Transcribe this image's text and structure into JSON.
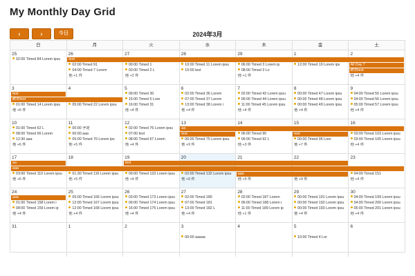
{
  "page_title": "My Monthly Day Grid",
  "toolbar": {
    "prev_label": "‹",
    "next_label": "›",
    "today_label": "今日"
  },
  "month_label": "2024年3月",
  "weekdays": [
    "日",
    "月",
    "火",
    "水",
    "木",
    "金",
    "土"
  ],
  "weeks": [
    {
      "days": [
        "25",
        "26",
        "27",
        "28",
        "29",
        "1",
        "2"
      ],
      "today_col": -1,
      "bars": [
        {
          "label": "test",
          "start": 1,
          "end": 6,
          "lane": 0
        },
        {
          "label": "All Day 7",
          "start": 6,
          "end": 6,
          "lane": 1
        },
        {
          "label": "終日test",
          "start": 6,
          "end": 6,
          "lane": 2
        }
      ],
      "events": [
        {
          "col": 0,
          "lane": 0,
          "text": "02:00 Timed 84 Lorem ipsu"
        },
        {
          "col": 1,
          "lane": 1,
          "text": "02:00 Timed 91"
        },
        {
          "col": 1,
          "lane": 2,
          "text": "04:00 Timed 7 Lorem"
        },
        {
          "col": 2,
          "lane": 1,
          "text": "00:00 Timed 1"
        },
        {
          "col": 2,
          "lane": 2,
          "text": "03:00 Timed 2 L"
        },
        {
          "col": 3,
          "lane": 1,
          "text": "10:00 Timed 11 Lorem ipsu"
        },
        {
          "col": 3,
          "lane": 2,
          "text": "15:00 test"
        },
        {
          "col": 4,
          "lane": 1,
          "text": "06:00 Timed 3 Lorem ip"
        },
        {
          "col": 4,
          "lane": 2,
          "text": "08:00 Timed 3 Lo"
        },
        {
          "col": 5,
          "lane": 1,
          "text": "12:00 Timed 10 Lorem ips"
        }
      ],
      "more": [
        {
          "col": 1,
          "lane": 3,
          "text": "他 +1 件"
        },
        {
          "col": 2,
          "lane": 3,
          "text": "他 +2 件"
        },
        {
          "col": 4,
          "lane": 3,
          "text": "他 +1 件"
        },
        {
          "col": 6,
          "lane": 3,
          "text": "他 +4 件"
        }
      ]
    },
    {
      "days": [
        "3",
        "4",
        "5",
        "6",
        "7",
        "8",
        "9"
      ],
      "today_col": -1,
      "bars": [
        {
          "label": "test",
          "start": 0,
          "end": 0,
          "lane": 0
        },
        {
          "label": "終日test",
          "start": 0,
          "end": 1,
          "lane": 1
        }
      ],
      "events": [
        {
          "col": 0,
          "lane": 2,
          "text": "01:00 Timed 14 Lorem ipsu"
        },
        {
          "col": 1,
          "lane": 2,
          "text": "05:00 Timed 22 Lorem ipsu"
        },
        {
          "col": 2,
          "lane": 0,
          "text": "09:00 Timed 30"
        },
        {
          "col": 2,
          "lane": 1,
          "text": "15:00 Timed 5 Lore"
        },
        {
          "col": 2,
          "lane": 2,
          "text": "16:00 Timed 31"
        },
        {
          "col": 3,
          "lane": 0,
          "text": "02:00 Timed 36 Lorem"
        },
        {
          "col": 3,
          "lane": 1,
          "text": "07:00 Timed 37 Lorem"
        },
        {
          "col": 3,
          "lane": 2,
          "text": "13:00 Timed 38 Lorem i"
        },
        {
          "col": 4,
          "lane": 0,
          "text": "02:00 Timed 43 Lorem ipsu"
        },
        {
          "col": 4,
          "lane": 1,
          "text": "06:00 Timed 44 Lorem ipsu"
        },
        {
          "col": 4,
          "lane": 2,
          "text": "11:00 Timed 45 Lorem ipsu"
        },
        {
          "col": 5,
          "lane": 0,
          "text": "00:00 Timed 47 Lorem ipsu"
        },
        {
          "col": 5,
          "lane": 1,
          "text": "00:00 Timed 48 Lorem ipsu"
        },
        {
          "col": 5,
          "lane": 2,
          "text": "00:00 Timed 49 Lorem ipsu"
        },
        {
          "col": 6,
          "lane": 0,
          "text": "04:00 Timed 55 Lorem ipsu"
        },
        {
          "col": 6,
          "lane": 1,
          "text": "04:00 Timed 56 Lorem ipsu"
        },
        {
          "col": 6,
          "lane": 2,
          "text": "05:00 Timed 57 Lorem ipsu"
        }
      ],
      "more": [
        {
          "col": 0,
          "lane": 3,
          "text": "他 +6 件"
        },
        {
          "col": 2,
          "lane": 3,
          "text": "他 +4 件"
        },
        {
          "col": 3,
          "lane": 3,
          "text": "他 +4 件"
        },
        {
          "col": 4,
          "lane": 3,
          "text": "他 +4 件"
        },
        {
          "col": 5,
          "lane": 3,
          "text": "他 +4 件"
        },
        {
          "col": 6,
          "lane": 3,
          "text": "他 +4 件"
        }
      ]
    },
    {
      "days": [
        "10",
        "11",
        "12",
        "13",
        "14",
        "15",
        "16"
      ],
      "today_col": -1,
      "bars": [
        {
          "label": "aa",
          "start": 3,
          "end": 6,
          "lane": 0
        },
        {
          "label": "test",
          "start": 3,
          "end": 3,
          "lane": 1
        },
        {
          "label": "test",
          "start": 5,
          "end": 5,
          "lane": 1
        }
      ],
      "events": [
        {
          "col": 0,
          "lane": 0,
          "text": "01:00 Timed 62 L"
        },
        {
          "col": 0,
          "lane": 1,
          "text": "08:00 Timed 66 Lorem"
        },
        {
          "col": 0,
          "lane": 2,
          "text": "12:30 aaa"
        },
        {
          "col": 1,
          "lane": 0,
          "text": "00:00 予定"
        },
        {
          "col": 1,
          "lane": 1,
          "text": "00:00 aaa"
        },
        {
          "col": 1,
          "lane": 2,
          "text": "05:00 Timed 70 Lorem ips"
        },
        {
          "col": 2,
          "lane": 0,
          "text": "02:00 Timed 76 Lorem ipsu"
        },
        {
          "col": 2,
          "lane": 1,
          "text": "07:00 test"
        },
        {
          "col": 2,
          "lane": 2,
          "text": "08:00 Timed 67 Lorem"
        },
        {
          "col": 3,
          "lane": 2,
          "text": "06:00 Timed 75 Lorem ipsu"
        },
        {
          "col": 4,
          "lane": 1,
          "text": "06:00 Timed 90"
        },
        {
          "col": 4,
          "lane": 2,
          "text": "06:00 Timed 92 L"
        },
        {
          "col": 5,
          "lane": 2,
          "text": "00:00 Timed 95 Lore"
        },
        {
          "col": 6,
          "lane": 1,
          "text": "03:00 Timed 103 Lorem ipsu"
        },
        {
          "col": 6,
          "lane": 2,
          "text": "03:00 Timed 105 Lorem ipsu"
        }
      ],
      "more": [
        {
          "col": 0,
          "lane": 3,
          "text": "他 +6 件"
        },
        {
          "col": 1,
          "lane": 3,
          "text": "他 +5 件"
        },
        {
          "col": 2,
          "lane": 3,
          "text": "他 +4 件"
        },
        {
          "col": 3,
          "lane": 3,
          "text": "他 +9 件"
        },
        {
          "col": 4,
          "lane": 3,
          "text": "他 +3 件"
        },
        {
          "col": 5,
          "lane": 3,
          "text": "他 +7 件"
        },
        {
          "col": 6,
          "lane": 3,
          "text": "他 +4 件"
        }
      ]
    },
    {
      "days": [
        "17",
        "18",
        "19",
        "20",
        "21",
        "22",
        "23"
      ],
      "today_col": 3,
      "bars": [
        {
          "label": "aa",
          "start": 0,
          "end": 0,
          "lane": 0
        },
        {
          "label": "test",
          "start": 2,
          "end": 5,
          "lane": 0
        },
        {
          "label": "aaa",
          "start": 0,
          "end": 6,
          "lane": 1
        },
        {
          "label": "aaa",
          "start": 4,
          "end": 5,
          "lane": 2
        }
      ],
      "events": [
        {
          "col": 0,
          "lane": 2,
          "text": "03:00 Timed 110 Lorem ipsu"
        },
        {
          "col": 1,
          "lane": 2,
          "text": "01:30 Timed 116 Lorem ipsu"
        },
        {
          "col": 2,
          "lane": 2,
          "text": "09:00 Timed 133 Lorem ipsu"
        },
        {
          "col": 3,
          "lane": 2,
          "text": "02:00 Timed 132 Lorem ipsu"
        },
        {
          "col": 6,
          "lane": 2,
          "text": "04:00 Timed 151"
        }
      ],
      "more": [
        {
          "col": 0,
          "lane": 3,
          "text": "他 +6 件"
        },
        {
          "col": 1,
          "lane": 3,
          "text": "他 +5 件"
        },
        {
          "col": 2,
          "lane": 3,
          "text": "他 +4 件"
        },
        {
          "col": 3,
          "lane": 3,
          "text": "他 +9 件"
        },
        {
          "col": 4,
          "lane": 3,
          "text": "他 +5 件"
        },
        {
          "col": 5,
          "lane": 3,
          "text": "他 +9 件"
        },
        {
          "col": 6,
          "lane": 3,
          "text": "他 +4 件"
        }
      ]
    },
    {
      "days": [
        "24",
        "25",
        "26",
        "27",
        "28",
        "29",
        "30"
      ],
      "today_col": -1,
      "bars": [
        {
          "label": "aaa",
          "start": 0,
          "end": 0,
          "lane": 0
        }
      ],
      "events": [
        {
          "col": 0,
          "lane": 1,
          "text": "01:00 Timed 158 Lorem i"
        },
        {
          "col": 0,
          "lane": 2,
          "text": "08:00 Timed 159 Lorem ip"
        },
        {
          "col": 1,
          "lane": 0,
          "text": "05:00 Timed 166 Lorem ipsu"
        },
        {
          "col": 1,
          "lane": 1,
          "text": "12:00 Timed 167 Lorem ipsu"
        },
        {
          "col": 1,
          "lane": 2,
          "text": "12:00 Timed 168 Lorem ipsu"
        },
        {
          "col": 2,
          "lane": 0,
          "text": "03:00 Timed 173 Lorem ipsu"
        },
        {
          "col": 2,
          "lane": 1,
          "text": "09:00 Timed 174 Lorem ipsu"
        },
        {
          "col": 2,
          "lane": 2,
          "text": "16:00 Timed 175 Lorem ipsu"
        },
        {
          "col": 3,
          "lane": 0,
          "text": "02:00 Timed 180"
        },
        {
          "col": 3,
          "lane": 1,
          "text": "07:00 Timed 181"
        },
        {
          "col": 3,
          "lane": 2,
          "text": "13:00 Timed 182 L"
        },
        {
          "col": 4,
          "lane": 0,
          "text": "02:00 Timed 187 Lorem"
        },
        {
          "col": 4,
          "lane": 1,
          "text": "06:00 Timed 188 Lorem i"
        },
        {
          "col": 4,
          "lane": 2,
          "text": "11:00 Timed 189 Lorem ip"
        },
        {
          "col": 5,
          "lane": 0,
          "text": "00:00 Timed 191 Lorem ipsu"
        },
        {
          "col": 5,
          "lane": 1,
          "text": "00:00 Timed 192 Lorem ipsu"
        },
        {
          "col": 5,
          "lane": 2,
          "text": "00:00 Timed 193 Lorem ipsu"
        },
        {
          "col": 6,
          "lane": 0,
          "text": "04:00 Timed 199 Lorem ipsu"
        },
        {
          "col": 6,
          "lane": 1,
          "text": "04:00 Timed 200 Lorem ipsu"
        },
        {
          "col": 6,
          "lane": 2,
          "text": "05:00 Timed 201 Lorem ipsu"
        }
      ],
      "more": [
        {
          "col": 0,
          "lane": 3,
          "text": "他 +4 件"
        },
        {
          "col": 1,
          "lane": 3,
          "text": "他 +4 件"
        },
        {
          "col": 2,
          "lane": 3,
          "text": "他 +4 件"
        },
        {
          "col": 3,
          "lane": 3,
          "text": "他 +4 件"
        },
        {
          "col": 4,
          "lane": 3,
          "text": "他 +1 件"
        },
        {
          "col": 5,
          "lane": 3,
          "text": "他 +4 件"
        },
        {
          "col": 6,
          "lane": 3,
          "text": "他 +4 件"
        }
      ]
    },
    {
      "days": [
        "31",
        "1",
        "2",
        "3",
        "4",
        "5",
        "6"
      ],
      "today_col": -1,
      "bars": [],
      "events": [
        {
          "col": 3,
          "lane": 1,
          "text": "00:00 aaaaa"
        },
        {
          "col": 5,
          "lane": 1,
          "text": "10:00 Timed 4 Lor"
        }
      ],
      "more": []
    }
  ]
}
